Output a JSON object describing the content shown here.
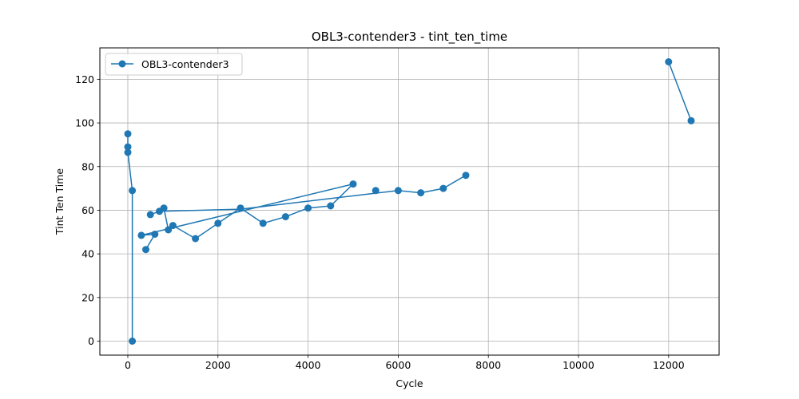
{
  "chart_data": {
    "type": "line",
    "title": "OBL3-contender3 - tint_ten_time",
    "xlabel": "Cycle",
    "ylabel": "Tint Ten Time",
    "xlim": [
      -620,
      13120
    ],
    "ylim": [
      -6.4,
      134.4
    ],
    "xticks": [
      0,
      2000,
      4000,
      6000,
      8000,
      10000,
      12000
    ],
    "yticks": [
      0,
      20,
      40,
      60,
      80,
      100,
      120
    ],
    "grid": true,
    "legend_position": "top-left",
    "color": "#1f77b4",
    "series": [
      {
        "name": "OBL3-contender3",
        "points": [
          {
            "x": 0,
            "y": 95
          },
          {
            "x": 0,
            "y": 89
          },
          {
            "x": 0,
            "y": 86.5
          },
          {
            "x": 100,
            "y": 0
          },
          {
            "x": 100,
            "y": 69
          },
          {
            "x": 300,
            "y": 48.5
          },
          {
            "x": 400,
            "y": 42
          },
          {
            "x": 500,
            "y": 58
          },
          {
            "x": 600,
            "y": 49
          },
          {
            "x": 700,
            "y": 59.5
          },
          {
            "x": 800,
            "y": 61
          },
          {
            "x": 900,
            "y": 51
          },
          {
            "x": 1000,
            "y": 53
          },
          {
            "x": 1500,
            "y": 47
          },
          {
            "x": 2000,
            "y": 54
          },
          {
            "x": 2500,
            "y": 61
          },
          {
            "x": 3000,
            "y": 54
          },
          {
            "x": 3500,
            "y": 57
          },
          {
            "x": 4000,
            "y": 61
          },
          {
            "x": 4500,
            "y": 62
          },
          {
            "x": 5000,
            "y": 72
          },
          {
            "x": 5500,
            "y": 69
          },
          {
            "x": 6000,
            "y": 69
          },
          {
            "x": 6500,
            "y": 68
          },
          {
            "x": 7000,
            "y": 70
          },
          {
            "x": 7500,
            "y": 76
          },
          {
            "x": 12000,
            "y": 128
          },
          {
            "x": 12500,
            "y": 101
          }
        ],
        "segments": [
          [
            [
              0,
              95
            ],
            [
              0,
              89
            ],
            [
              0,
              86.5
            ],
            [
              100,
              69
            ],
            [
              100,
              0
            ]
          ],
          [
            [
              800,
              61
            ],
            [
              900,
              51
            ],
            [
              1000,
              53
            ],
            [
              1500,
              47
            ],
            [
              2000,
              54
            ],
            [
              2500,
              61
            ],
            [
              3000,
              54
            ],
            [
              3500,
              57
            ],
            [
              4000,
              61
            ],
            [
              4500,
              62
            ],
            [
              5000,
              72
            ],
            [
              300,
              48.5
            ],
            [
              600,
              49
            ],
            [
              400,
              42
            ]
          ],
          [
            [
              500,
              58
            ],
            [
              700,
              59.5
            ],
            [
              2500,
              60.5
            ],
            [
              6000,
              69
            ],
            [
              6500,
              68
            ],
            [
              7000,
              70
            ],
            [
              7500,
              76
            ]
          ],
          [
            [
              12000,
              128
            ],
            [
              12500,
              101
            ]
          ]
        ]
      }
    ]
  }
}
